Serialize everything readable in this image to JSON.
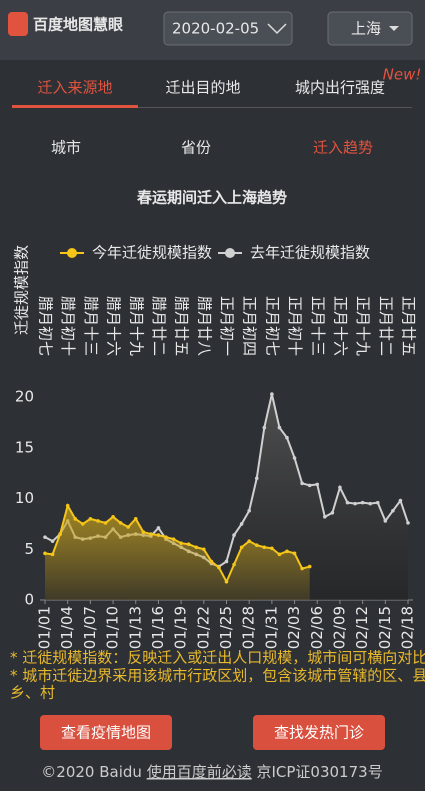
{
  "header": {
    "logo": "百度地图慧眼",
    "date": "2020-02-05",
    "city": "上海"
  },
  "tabs": [
    "迁入来源地",
    "迁出目的地",
    "城内出行强度"
  ],
  "badge": "New!",
  "subtabs": [
    "城市",
    "省份",
    "迁入趋势"
  ],
  "chart_data": {
    "type": "line",
    "title": "春运期间迁入上海趋势",
    "y_label": "迁徙规模指数",
    "categories": [
      "01/01",
      null,
      null,
      "01/04",
      null,
      null,
      "01/07",
      null,
      null,
      "01/10",
      null,
      null,
      "01/13",
      null,
      null,
      "01/16",
      null,
      null,
      "01/19",
      null,
      null,
      "01/22",
      null,
      null,
      "01/25",
      null,
      null,
      "01/28",
      null,
      null,
      "01/31",
      null,
      null,
      "02/03",
      null,
      null,
      "02/06",
      null,
      null,
      "02/09",
      null,
      null,
      "02/12",
      null,
      null,
      "02/15",
      null,
      null,
      "02/18"
    ],
    "lunar_labels": [
      "腊月初七",
      null,
      null,
      "腊月初十",
      null,
      null,
      "腊月十三",
      null,
      null,
      "腊月十六",
      null,
      null,
      "腊月十九",
      null,
      null,
      "腊月廿二",
      null,
      null,
      "腊月廿五",
      null,
      null,
      "腊月廿八",
      null,
      null,
      "正月初一",
      null,
      null,
      "正月初四",
      null,
      null,
      "正月初七",
      null,
      null,
      "正月初十",
      null,
      null,
      "正月十三",
      null,
      null,
      "正月十六",
      null,
      null,
      "正月十九",
      null,
      null,
      "正月廿二",
      null,
      null,
      "正月廿五"
    ],
    "series": [
      {
        "name": "今年迁徙规模指数",
        "color": "#f5c518",
        "values": [
          4.6,
          4.5,
          6.5,
          9.3,
          8.0,
          7.5,
          8.0,
          7.8,
          7.6,
          8.2,
          7.6,
          7.2,
          8.0,
          6.7,
          6.5,
          6.4,
          6.2,
          6.0,
          5.6,
          5.5,
          5.2,
          5.0,
          3.8,
          3.2,
          1.8,
          3.5,
          5.2,
          5.8,
          5.4,
          5.2,
          5.1,
          4.5,
          4.8,
          4.6,
          3.1,
          3.3,
          null,
          null,
          null,
          null,
          null,
          null,
          null,
          null,
          null,
          null,
          null,
          null,
          null
        ]
      },
      {
        "name": "去年迁徙规模指数",
        "color": "#d0d0d0",
        "values": [
          6.2,
          5.8,
          6.5,
          7.8,
          6.2,
          6.0,
          6.1,
          6.3,
          6.2,
          7.0,
          6.2,
          6.4,
          6.5,
          6.4,
          6.3,
          7.1,
          6.0,
          5.6,
          5.2,
          4.8,
          4.5,
          4.2,
          3.6,
          3.3,
          3.8,
          6.4,
          7.5,
          8.8,
          12.0,
          17.0,
          20.3,
          17.0,
          16.0,
          14.0,
          11.5,
          11.3,
          11.4,
          8.2,
          8.6,
          11.1,
          9.6,
          9.5,
          9.6,
          9.5,
          9.6,
          7.8,
          8.8,
          9.8,
          7.6
        ]
      }
    ],
    "ylim": [
      0,
      21
    ],
    "yticks": [
      0,
      5,
      10,
      15,
      20
    ]
  },
  "notes": [
    "* 迁徙规模指数：反映迁入或迁出人口规模，城市间可横向对比",
    "* 城市迁徙边界采用该城市行政区划，包含该城市管辖的区、县、",
    "乡、村"
  ],
  "buttons": [
    "查看疫情地图",
    "查找发热门诊"
  ],
  "footer": {
    "copyright": "©2020 Baidu",
    "link": "使用百度前必读",
    "icp": "京ICP证030173号"
  }
}
